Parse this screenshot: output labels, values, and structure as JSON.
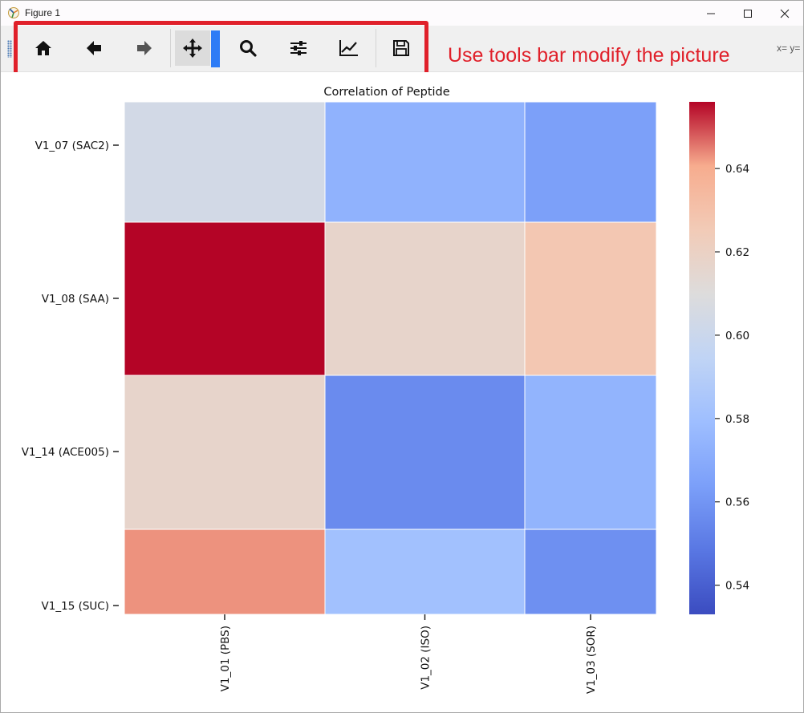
{
  "window": {
    "title": "Figure 1",
    "controls": [
      "minimize-icon",
      "maximize-icon",
      "close-icon"
    ]
  },
  "toolbar": {
    "buttons": [
      {
        "name": "home",
        "icon": "home-icon"
      },
      {
        "name": "back",
        "icon": "arrow-left-icon"
      },
      {
        "name": "forward",
        "icon": "arrow-right-icon"
      },
      {
        "name": "pan",
        "icon": "move-icon",
        "active": true
      },
      {
        "name": "zoom",
        "icon": "magnifier-icon"
      },
      {
        "name": "subplots",
        "icon": "sliders-icon"
      },
      {
        "name": "edit-axes",
        "icon": "line-chart-icon"
      },
      {
        "name": "save",
        "icon": "floppy-disk-icon"
      }
    ],
    "coords_text": "x= y="
  },
  "annotation": {
    "text": "Use tools bar modify the picture",
    "color": "#e0202a"
  },
  "chart_data": {
    "type": "heatmap",
    "title": "Correlation of Peptide",
    "xlabel": "",
    "ylabel": "",
    "x_categories": [
      "V1_01 (PBS)",
      "V1_02 (ISO)",
      "V1_03 (SOR)"
    ],
    "y_categories": [
      "V1_07 (SAC2)",
      "V1_08 (SAA)",
      "V1_14 (ACE005)",
      "V1_15 (SUC)"
    ],
    "values": [
      [
        0.604,
        0.573,
        0.564
      ],
      [
        0.656,
        0.617,
        0.627
      ],
      [
        0.617,
        0.556,
        0.574
      ],
      [
        0.643,
        0.581,
        0.558
      ]
    ],
    "colormap": "coolwarm",
    "vmin": 0.533,
    "vmax": 0.656,
    "colorbar_ticks": [
      "0.54",
      "0.56",
      "0.58",
      "0.60",
      "0.62",
      "0.64"
    ],
    "colorbar_tick_values": [
      0.54,
      0.56,
      0.58,
      0.6,
      0.62,
      0.64
    ],
    "grid": false
  }
}
